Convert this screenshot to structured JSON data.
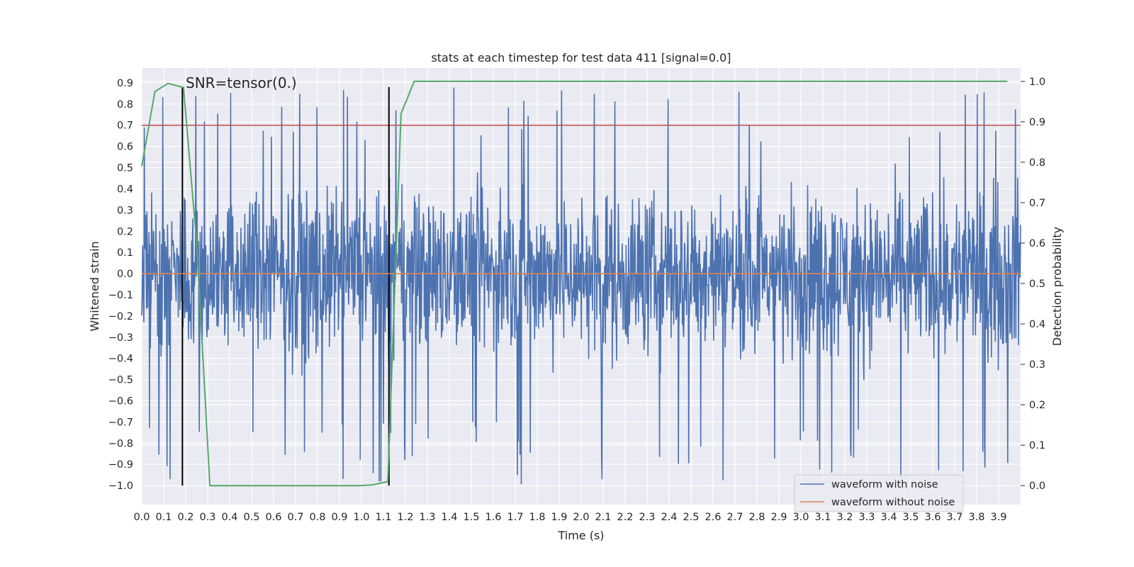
{
  "chart_data": {
    "type": "line",
    "title": "stats at each timestep for test data 411 [signal=0.0]",
    "xlabel": "Time (s)",
    "ylabel": "Whitened strain",
    "y2label": "Detection probability",
    "annotation": "SNR=tensor(0.)",
    "xlim": [
      0.0,
      4.0
    ],
    "ylim": [
      -1.09,
      0.97
    ],
    "y2lim": [
      -0.047,
      1.033
    ],
    "xticks": [
      "0.0",
      "0.1",
      "0.2",
      "0.3",
      "0.4",
      "0.5",
      "0.6",
      "0.7",
      "0.8",
      "0.9",
      "1.0",
      "1.1",
      "1.2",
      "1.3",
      "1.4",
      "1.5",
      "1.6",
      "1.7",
      "1.8",
      "1.9",
      "2.0",
      "2.1",
      "2.2",
      "2.3",
      "2.4",
      "2.5",
      "2.6",
      "2.7",
      "2.8",
      "2.9",
      "3.0",
      "3.1",
      "3.2",
      "3.3",
      "3.4",
      "3.5",
      "3.6",
      "3.7",
      "3.8",
      "3.9"
    ],
    "yticks": [
      "0.9",
      "0.8",
      "0.7",
      "0.6",
      "0.5",
      "0.4",
      "0.3",
      "0.2",
      "0.1",
      "0.0",
      "−0.1",
      "−0.2",
      "−0.3",
      "−0.4",
      "−0.5",
      "−0.6",
      "−0.7",
      "−0.8",
      "−0.9",
      "−1.0"
    ],
    "y2ticks": [
      "1.0",
      "0.9",
      "0.8",
      "0.7",
      "0.6",
      "0.5",
      "0.4",
      "0.3",
      "0.2",
      "0.1",
      "0.0"
    ],
    "grid": true,
    "legend_position": "lower-right",
    "series": [
      {
        "name": "waveform with noise",
        "color": "#4c72b0",
        "axis": "left",
        "kind": "noise",
        "sample_count": 2048,
        "envelope": {
          "typical_max": 0.52,
          "typical_min": -0.62,
          "peak_max": 0.88,
          "peak_min": -1.0
        }
      },
      {
        "name": "waveform without noise",
        "color": "#dd8452",
        "axis": "left",
        "x": [
          0.0,
          4.0
        ],
        "y": [
          0.0,
          0.0
        ]
      },
      {
        "color": "#55a868",
        "axis": "right",
        "x": [
          0.0,
          0.06,
          0.12,
          0.19,
          0.25,
          0.31,
          0.37,
          0.43,
          0.5,
          0.56,
          0.62,
          0.68,
          0.74,
          0.81,
          0.87,
          0.93,
          0.99,
          1.05,
          1.12,
          1.18,
          1.24,
          1.3,
          3.94
        ],
        "y": [
          0.79,
          0.975,
          0.995,
          0.985,
          0.6,
          0.0,
          0.0,
          0.0,
          0.0,
          0.0,
          0.0,
          0.0,
          0.0,
          0.0,
          0.0,
          0.0,
          0.0,
          0.002,
          0.01,
          0.92,
          1.0,
          1.0,
          1.0
        ]
      }
    ],
    "reference_lines": [
      {
        "orientation": "horizontal",
        "axis": "left",
        "value": 0.7,
        "color": "#c44e52"
      },
      {
        "orientation": "vertical",
        "value": 0.185,
        "ymin": -1.0,
        "ymax": 0.88,
        "color": "#000000"
      },
      {
        "orientation": "vertical",
        "value": 1.125,
        "ymin": -1.0,
        "ymax": 0.88,
        "color": "#000000"
      }
    ]
  }
}
